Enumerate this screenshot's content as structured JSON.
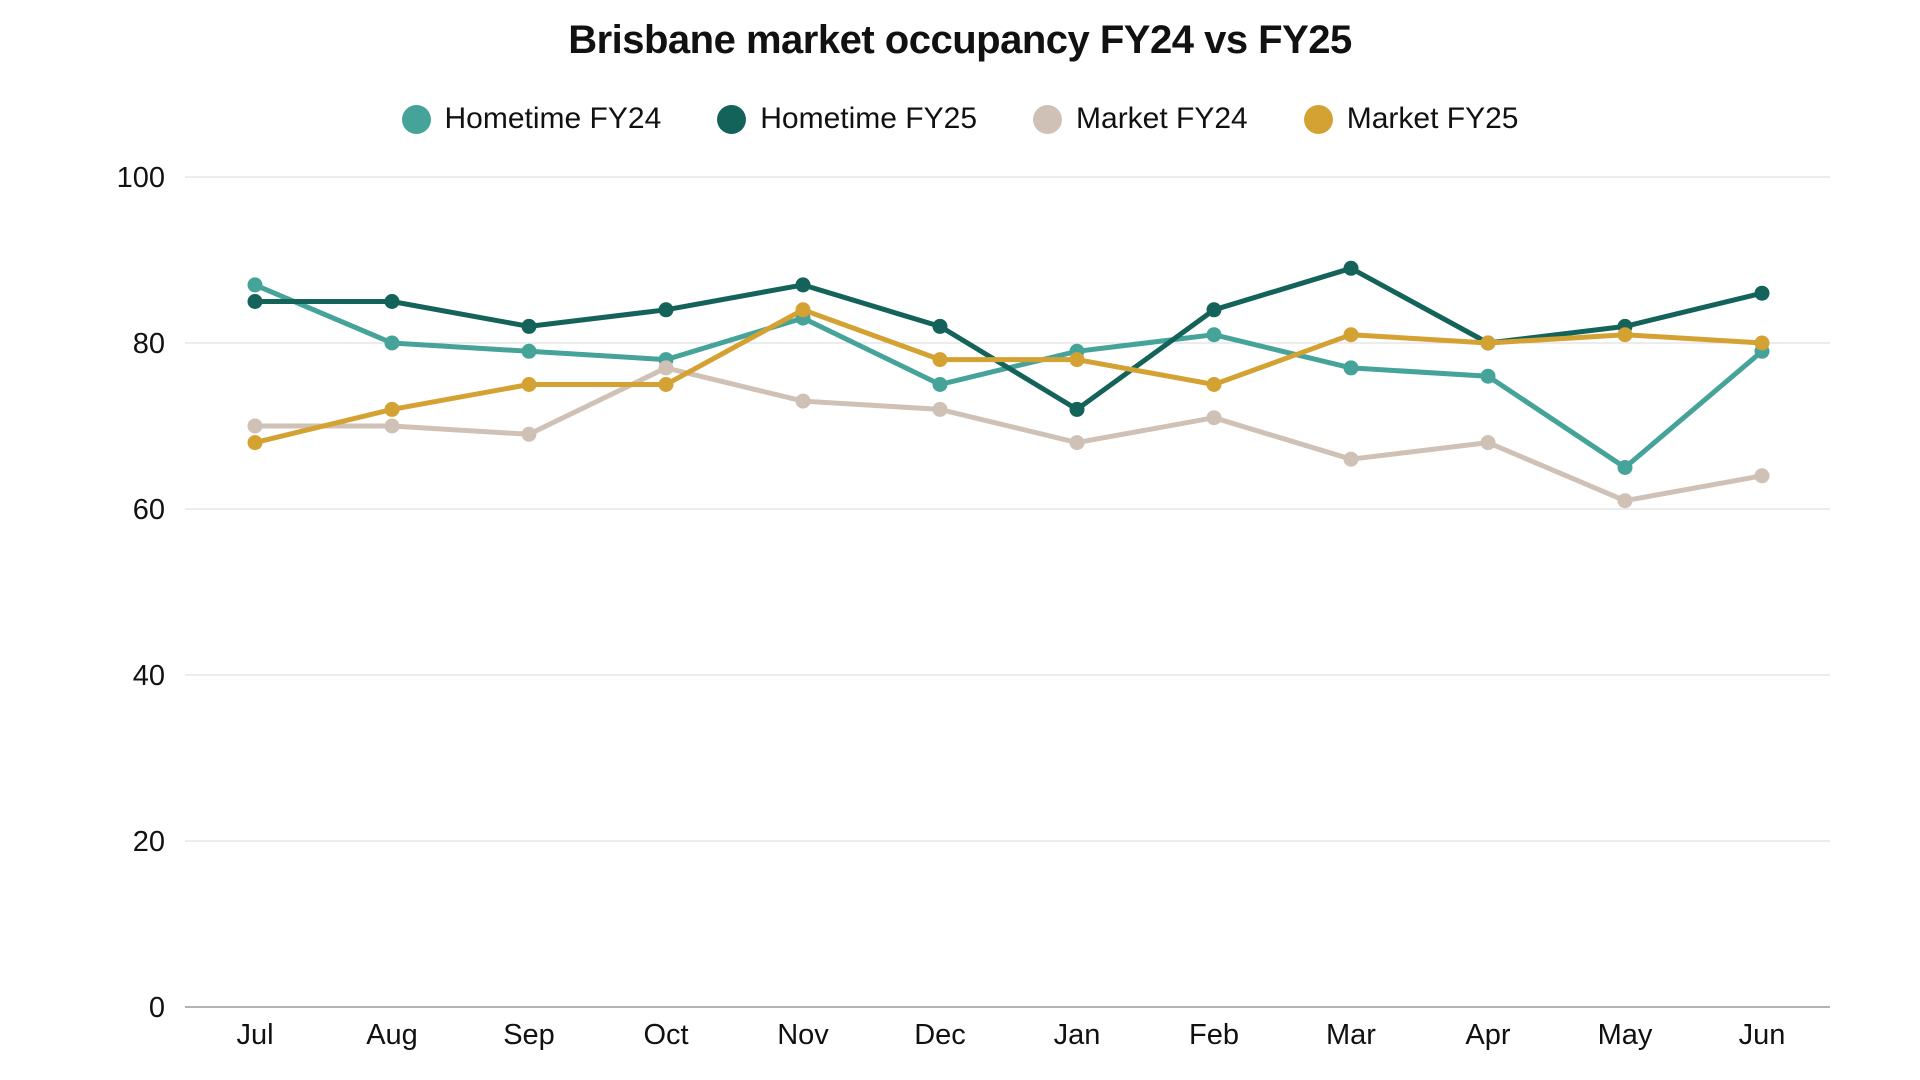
{
  "chart_data": {
    "type": "line",
    "title": "Brisbane market occupancy FY24 vs FY25",
    "xlabel": "",
    "ylabel": "",
    "categories": [
      "Jul",
      "Aug",
      "Sep",
      "Oct",
      "Nov",
      "Dec",
      "Jan",
      "Feb",
      "Mar",
      "Apr",
      "May",
      "Jun"
    ],
    "ylim": [
      0,
      100
    ],
    "yticks": [
      0,
      20,
      40,
      60,
      80,
      100
    ],
    "grid": true,
    "legend_position": "top-center",
    "series": [
      {
        "name": "Hometime FY24",
        "color": "#45a39a",
        "values": [
          87,
          80,
          79,
          78,
          83,
          75,
          79,
          81,
          77,
          76,
          65,
          79
        ]
      },
      {
        "name": "Hometime FY25",
        "color": "#14635a",
        "values": [
          85,
          85,
          82,
          84,
          87,
          82,
          72,
          84,
          89,
          80,
          82,
          86
        ]
      },
      {
        "name": "Market FY24",
        "color": "#cfc1b5",
        "values": [
          70,
          70,
          69,
          77,
          73,
          72,
          68,
          71,
          66,
          68,
          61,
          64
        ]
      },
      {
        "name": "Market FY25",
        "color": "#d4a232",
        "values": [
          68,
          72,
          75,
          75,
          84,
          78,
          78,
          75,
          81,
          80,
          81,
          80
        ]
      }
    ]
  }
}
